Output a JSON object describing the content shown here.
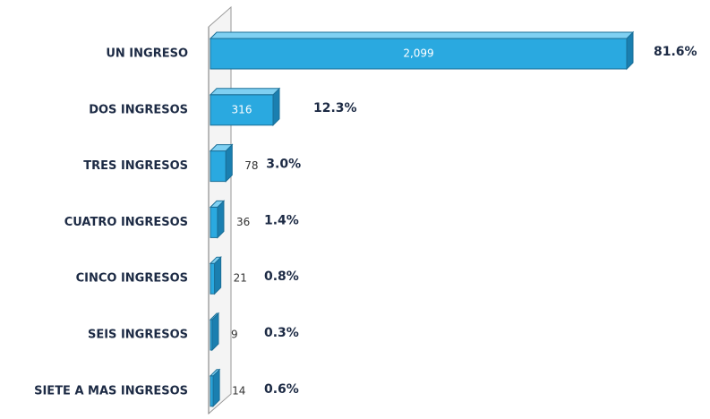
{
  "chart_data": {
    "type": "bar",
    "orientation": "horizontal",
    "categories": [
      "UN INGRESO",
      "DOS INGRESOS",
      "TRES INGRESOS",
      "CUATRO INGRESOS",
      "CINCO INGRESOS",
      "SEIS INGRESOS",
      "SIETE A MAS INGRESOS"
    ],
    "values": [
      2099,
      316,
      78,
      36,
      21,
      9,
      14
    ],
    "value_labels": [
      "2,099",
      "316",
      "78",
      "36",
      "21",
      "9",
      "14"
    ],
    "percent_labels": [
      "81.6%",
      "12.3%",
      "3.0%",
      "1.4%",
      "0.8%",
      "0.3%",
      "0.6%"
    ],
    "color": "#2aa9e0"
  }
}
